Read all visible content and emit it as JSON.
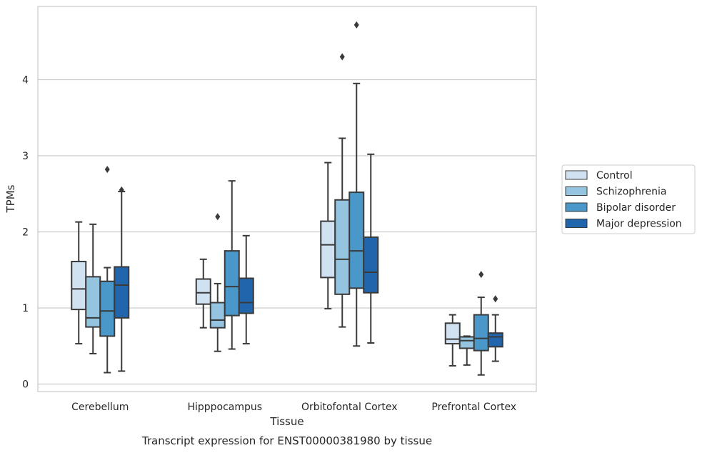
{
  "caption": "Transcript expression for ENST00000381980 by tissue",
  "chart_data": {
    "type": "box",
    "title": "",
    "xlabel": "Tissue",
    "ylabel": "TPMs",
    "ylim": [
      -0.1,
      4.95
    ],
    "yticks": [
      0,
      1,
      2,
      3,
      4
    ],
    "grid": "horizontal",
    "legend_position": "right",
    "categories": [
      "Cerebellum",
      "Hipppocampus",
      "Orbitofontal Cortex",
      "Prefrontal Cortex"
    ],
    "series": [
      {
        "name": "Control",
        "color": "#d0e1f2",
        "boxes": [
          {
            "whislo": 0.53,
            "q1": 0.98,
            "med": 1.25,
            "q3": 1.61,
            "whishi": 2.13,
            "fliers": []
          },
          {
            "whislo": 0.74,
            "q1": 1.05,
            "med": 1.2,
            "q3": 1.38,
            "whishi": 1.64,
            "fliers": []
          },
          {
            "whislo": 0.99,
            "q1": 1.4,
            "med": 1.83,
            "q3": 2.14,
            "whishi": 2.91,
            "fliers": []
          },
          {
            "whislo": 0.24,
            "q1": 0.53,
            "med": 0.59,
            "q3": 0.8,
            "whishi": 0.91,
            "fliers": []
          }
        ]
      },
      {
        "name": "Schizophrenia",
        "color": "#94c4df",
        "boxes": [
          {
            "whislo": 0.4,
            "q1": 0.75,
            "med": 0.87,
            "q3": 1.41,
            "whishi": 2.1,
            "fliers": []
          },
          {
            "whislo": 0.43,
            "q1": 0.74,
            "med": 0.84,
            "q3": 1.07,
            "whishi": 1.32,
            "fliers": [
              2.2
            ]
          },
          {
            "whislo": 0.75,
            "q1": 1.18,
            "med": 1.64,
            "q3": 2.42,
            "whishi": 3.23,
            "fliers": [
              4.3
            ]
          },
          {
            "whislo": 0.25,
            "q1": 0.47,
            "med": 0.57,
            "q3": 0.62,
            "whishi": 0.63,
            "fliers": []
          }
        ]
      },
      {
        "name": "Bipolar disorder",
        "color": "#4a98c9",
        "boxes": [
          {
            "whislo": 0.15,
            "q1": 0.63,
            "med": 0.96,
            "q3": 1.35,
            "whishi": 1.53,
            "fliers": [
              2.82
            ]
          },
          {
            "whislo": 0.46,
            "q1": 0.9,
            "med": 1.28,
            "q3": 1.75,
            "whishi": 2.67,
            "fliers": []
          },
          {
            "whislo": 0.5,
            "q1": 1.26,
            "med": 1.75,
            "q3": 2.52,
            "whishi": 3.95,
            "fliers": [
              4.72
            ]
          },
          {
            "whislo": 0.12,
            "q1": 0.44,
            "med": 0.6,
            "q3": 0.91,
            "whishi": 1.14,
            "fliers": [
              1.44
            ]
          }
        ]
      },
      {
        "name": "Major depression",
        "color": "#2166ac",
        "boxes": [
          {
            "whislo": 0.17,
            "q1": 0.87,
            "med": 1.3,
            "q3": 1.54,
            "whishi": 2.53,
            "fliers": [
              2.55
            ]
          },
          {
            "whislo": 0.53,
            "q1": 0.93,
            "med": 1.07,
            "q3": 1.39,
            "whishi": 1.95,
            "fliers": []
          },
          {
            "whislo": 0.54,
            "q1": 1.2,
            "med": 1.47,
            "q3": 1.93,
            "whishi": 3.02,
            "fliers": []
          },
          {
            "whislo": 0.3,
            "q1": 0.49,
            "med": 0.62,
            "q3": 0.67,
            "whishi": 0.91,
            "fliers": [
              1.12
            ]
          }
        ]
      }
    ]
  }
}
